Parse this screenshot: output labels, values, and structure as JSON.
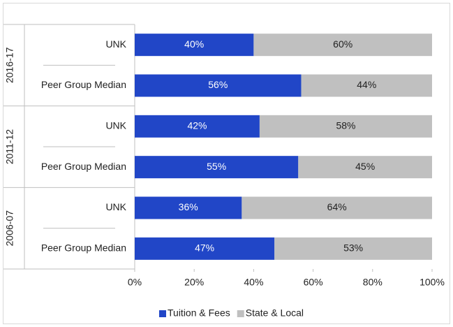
{
  "chart_data": {
    "type": "stacked_bar_horizontal",
    "groups": [
      {
        "name": "2016-17",
        "size": 2
      },
      {
        "name": "2011-12",
        "size": 2
      },
      {
        "name": "2006-07",
        "size": 2
      }
    ],
    "categories": [
      "UNK",
      "Peer Group Median",
      "UNK",
      "Peer Group Median",
      "UNK",
      "Peer Group Median"
    ],
    "series": [
      {
        "name": "Tuition & Fees",
        "color": "#2146c7",
        "values": [
          40,
          56,
          42,
          55,
          36,
          47
        ],
        "value_labels": [
          "40%",
          "56%",
          "42%",
          "55%",
          "36%",
          "47%"
        ]
      },
      {
        "name": "State & Local",
        "color": "#c0c0c0",
        "values": [
          60,
          44,
          58,
          45,
          64,
          53
        ],
        "value_labels": [
          "60%",
          "44%",
          "58%",
          "45%",
          "64%",
          "53%"
        ]
      }
    ],
    "xlim": [
      0,
      100
    ],
    "xticks": [
      {
        "value": 0,
        "label": "0%"
      },
      {
        "value": 20,
        "label": "20%"
      },
      {
        "value": 40,
        "label": "40%"
      },
      {
        "value": 60,
        "label": "60%"
      },
      {
        "value": 80,
        "label": "80%"
      },
      {
        "value": 100,
        "label": "100%"
      }
    ],
    "legend": "bottom"
  }
}
